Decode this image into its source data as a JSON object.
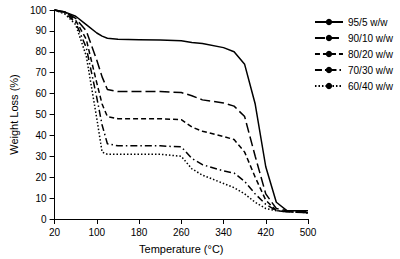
{
  "chart_data": {
    "type": "line",
    "xlabel": "Temperature (°C)",
    "ylabel": "Weight Loss (%)",
    "x": [
      20,
      40,
      60,
      80,
      100,
      110,
      120,
      140,
      180,
      220,
      260,
      280,
      300,
      340,
      360,
      380,
      400,
      420,
      440,
      460,
      500
    ],
    "series": [
      {
        "name": "95/5 w/w",
        "color": "#000000",
        "line_style": "solid",
        "values": [
          100,
          99,
          97,
          93,
          89,
          87.5,
          86.5,
          86,
          85.8,
          85.6,
          85.3,
          84.5,
          84,
          82,
          80,
          74,
          55,
          25,
          8,
          4,
          4
        ]
      },
      {
        "name": "90/10 w/w",
        "color": "#000000",
        "line_style": "longdash",
        "values": [
          100,
          99,
          96,
          90,
          76,
          68,
          62,
          61,
          61,
          61,
          60.5,
          59,
          57,
          55.5,
          54,
          49,
          30,
          12,
          5,
          4,
          3.5
        ]
      },
      {
        "name": "80/20 w/w",
        "color": "#000000",
        "line_style": "dashed",
        "values": [
          100,
          99,
          95,
          86,
          65,
          55,
          49,
          48,
          48,
          48,
          47.5,
          44,
          42,
          39.5,
          38,
          32,
          20,
          9,
          4,
          3.5,
          3
        ]
      },
      {
        "name": "70/30 w/w",
        "color": "#000000",
        "line_style": "dashdot",
        "values": [
          100,
          98.5,
          94,
          82,
          58,
          45,
          36,
          35,
          35,
          35,
          34.5,
          29,
          26,
          23,
          22,
          18,
          12,
          7,
          4,
          3.5,
          3
        ]
      },
      {
        "name": "60/40 w/w",
        "color": "#000000",
        "line_style": "dotted",
        "values": [
          100,
          98,
          93,
          78,
          48,
          32,
          31,
          31,
          31,
          31,
          30,
          24,
          21,
          17,
          15,
          12,
          8,
          5,
          4,
          3.5,
          3
        ]
      }
    ],
    "xlim": [
      20,
      500
    ],
    "xticks": [
      20,
      100,
      180,
      260,
      340,
      420,
      500
    ],
    "ylim": [
      0,
      100
    ],
    "yticks": [
      0,
      10,
      20,
      30,
      40,
      50,
      60,
      70,
      80,
      90,
      100
    ],
    "grid": false,
    "legend": "right"
  }
}
